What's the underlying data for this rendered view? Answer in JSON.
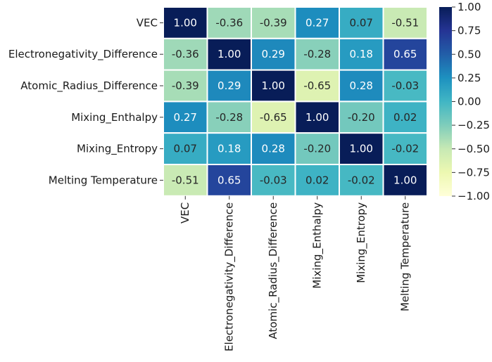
{
  "chart_data": {
    "type": "heatmap",
    "title": "",
    "rows": [
      "VEC",
      "Electronegativity_Difference",
      "Atomic_Radius_Difference",
      "Mixing_Enthalpy",
      "Mixing_Entropy",
      "Melting Temperature"
    ],
    "columns": [
      "VEC",
      "Electronegativity_Difference",
      "Atomic_Radius_Difference",
      "Mixing_Enthalpy",
      "Mixing_Entropy",
      "Melting Temperature"
    ],
    "values": [
      [
        1.0,
        -0.36,
        -0.39,
        0.27,
        0.07,
        -0.51
      ],
      [
        -0.36,
        1.0,
        0.29,
        -0.28,
        0.18,
        0.65
      ],
      [
        -0.39,
        0.29,
        1.0,
        -0.65,
        0.28,
        -0.03
      ],
      [
        0.27,
        -0.28,
        -0.65,
        1.0,
        -0.2,
        0.02
      ],
      [
        0.07,
        0.18,
        0.28,
        -0.2,
        1.0,
        -0.02
      ],
      [
        -0.51,
        0.65,
        -0.03,
        0.02,
        -0.02,
        1.0
      ]
    ],
    "annotation_format": "2 decimals",
    "colormap": "YlGnBu",
    "colormap_stops": [
      "#ffffd9",
      "#edf8b1",
      "#c7e9b4",
      "#7fcdbb",
      "#41b6c4",
      "#1d91c0",
      "#225ea8",
      "#253494",
      "#081d58"
    ],
    "vmin": -1.0,
    "vmax": 1.0,
    "colorbar": {
      "location": "right",
      "ticks": [
        1.0,
        0.75,
        0.5,
        0.25,
        0.0,
        -0.25,
        -0.5,
        -0.75,
        -1.0
      ],
      "tick_labels": [
        "1.00",
        "0.75",
        "0.50",
        "0.25",
        "0.00",
        "−0.25",
        "−0.50",
        "−0.75",
        "−1.00"
      ]
    },
    "xlabel": "",
    "ylabel": ""
  }
}
